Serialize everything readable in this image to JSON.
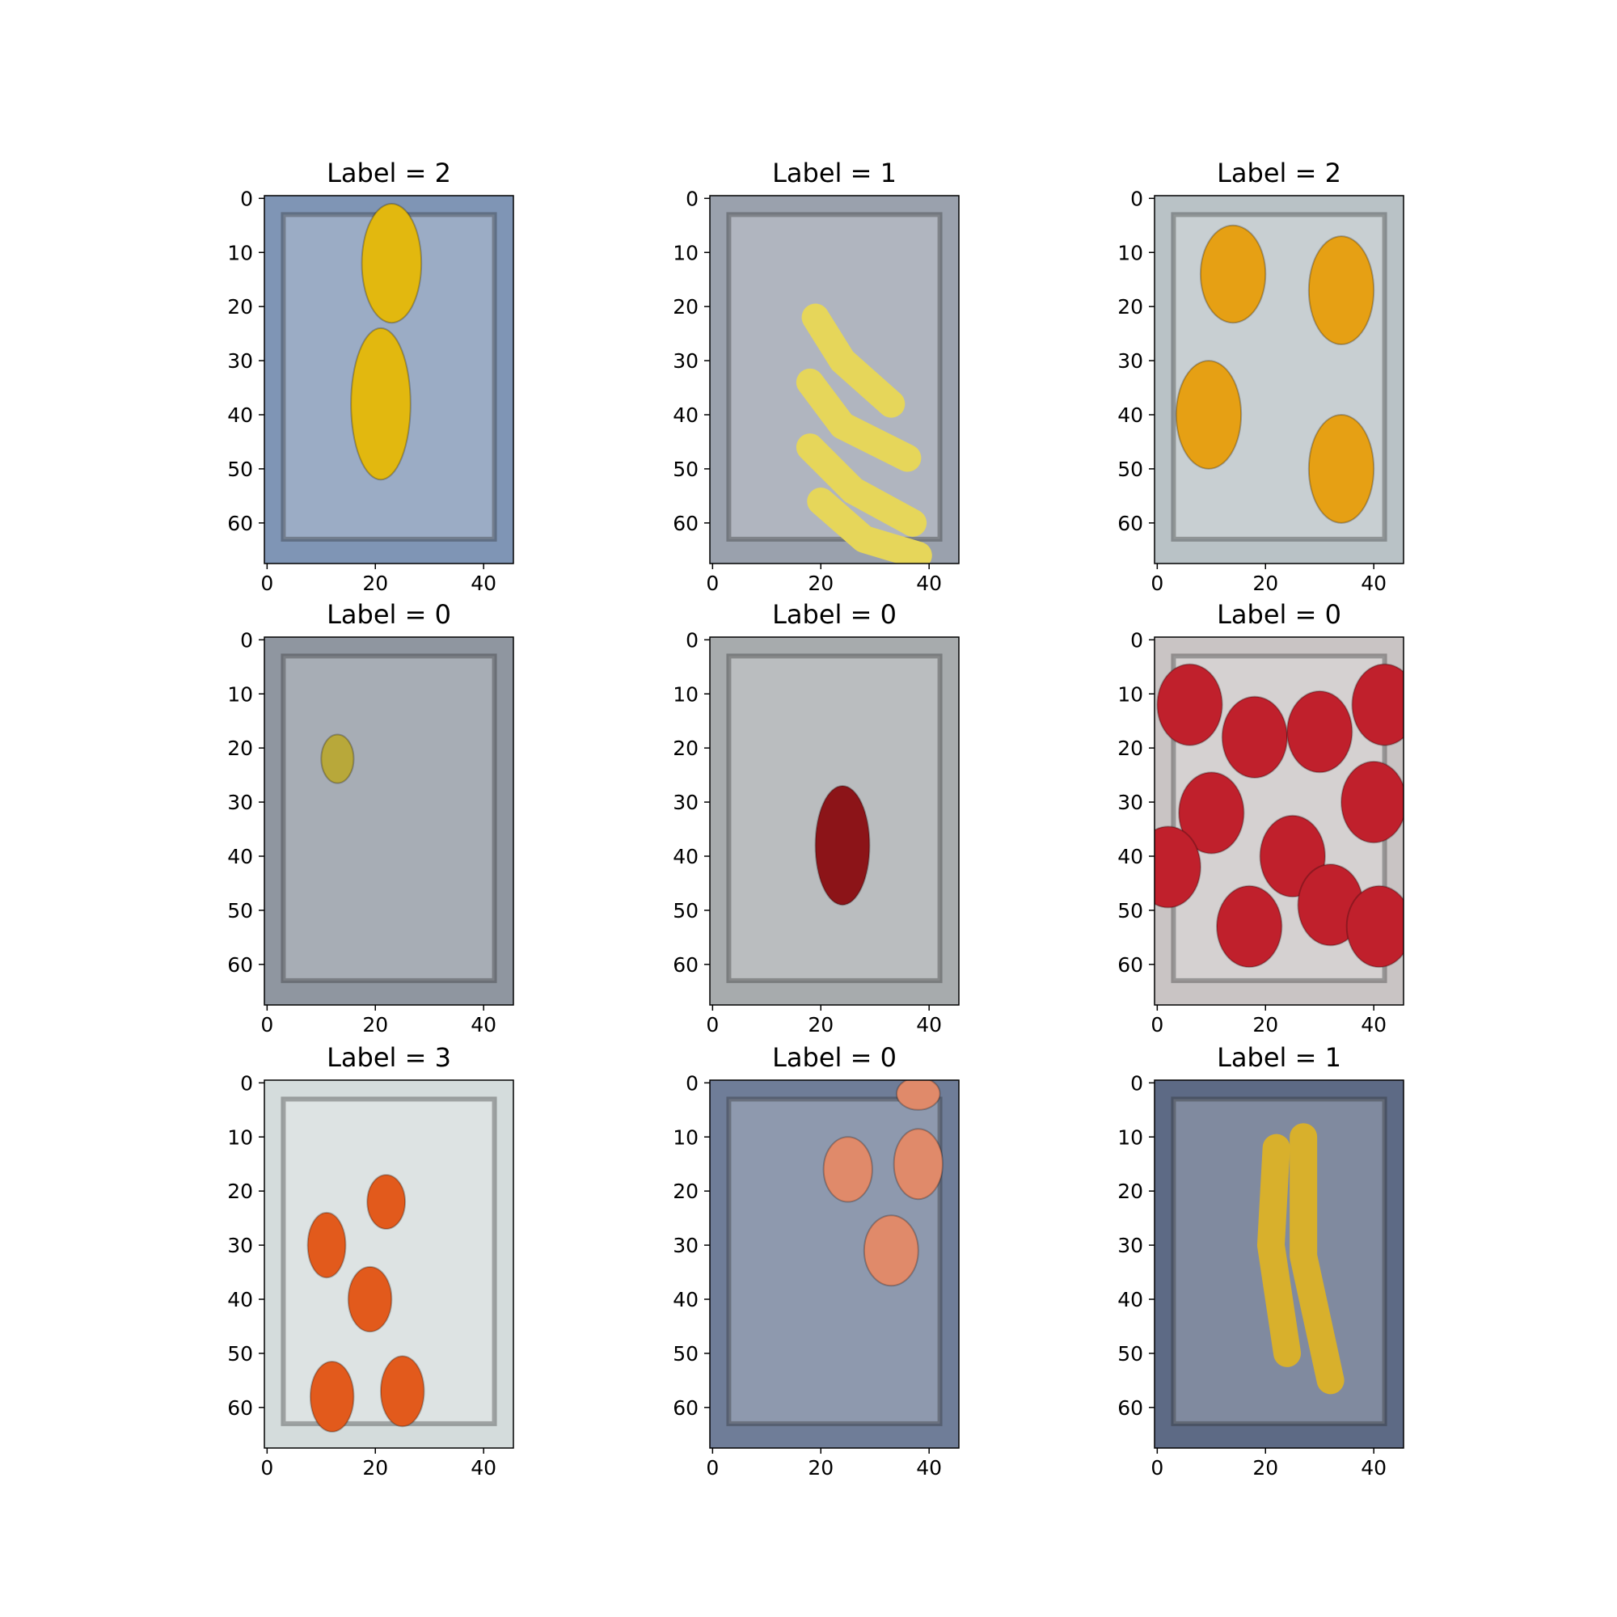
{
  "figure": {
    "x_ticks": [
      "0",
      "20",
      "40"
    ],
    "y_ticks": [
      "0",
      "10",
      "20",
      "30",
      "40",
      "50",
      "60"
    ],
    "x_range": [
      -0.5,
      45.5
    ],
    "y_range": [
      67.5,
      -0.5
    ],
    "x_tick_values": [
      0,
      20,
      40
    ],
    "y_tick_values": [
      0,
      10,
      20,
      30,
      40,
      50,
      60
    ],
    "panels": [
      {
        "title": "Label = 2",
        "subject": "lemons",
        "background": "#7f95b5",
        "fruit_color": "#e2b80f"
      },
      {
        "title": "Label = 1",
        "subject": "bananas",
        "background": "#9aa1ad",
        "fruit_color": "#e6d65a"
      },
      {
        "title": "Label = 2",
        "subject": "oranges",
        "background": "#b9c2c6",
        "fruit_color": "#e6a014"
      },
      {
        "title": "Label = 0",
        "subject": "small apple",
        "background": "#8f96a0",
        "fruit_color": "#b8a83a"
      },
      {
        "title": "Label = 0",
        "subject": "red apple",
        "background": "#a7abad",
        "fruit_color": "#8c1418"
      },
      {
        "title": "Label = 0",
        "subject": "many red apples",
        "background": "#c9c4c4",
        "fruit_color": "#c0202c"
      },
      {
        "title": "Label = 3",
        "subject": "tomatoes",
        "background": "#d4dcdc",
        "fruit_color": "#e25a1c"
      },
      {
        "title": "Label = 0",
        "subject": "apples",
        "background": "#6f7d98",
        "fruit_color": "#e08a6a"
      },
      {
        "title": "Label = 1",
        "subject": "bananas",
        "background": "#5d6a85",
        "fruit_color": "#d8b02c"
      }
    ]
  }
}
